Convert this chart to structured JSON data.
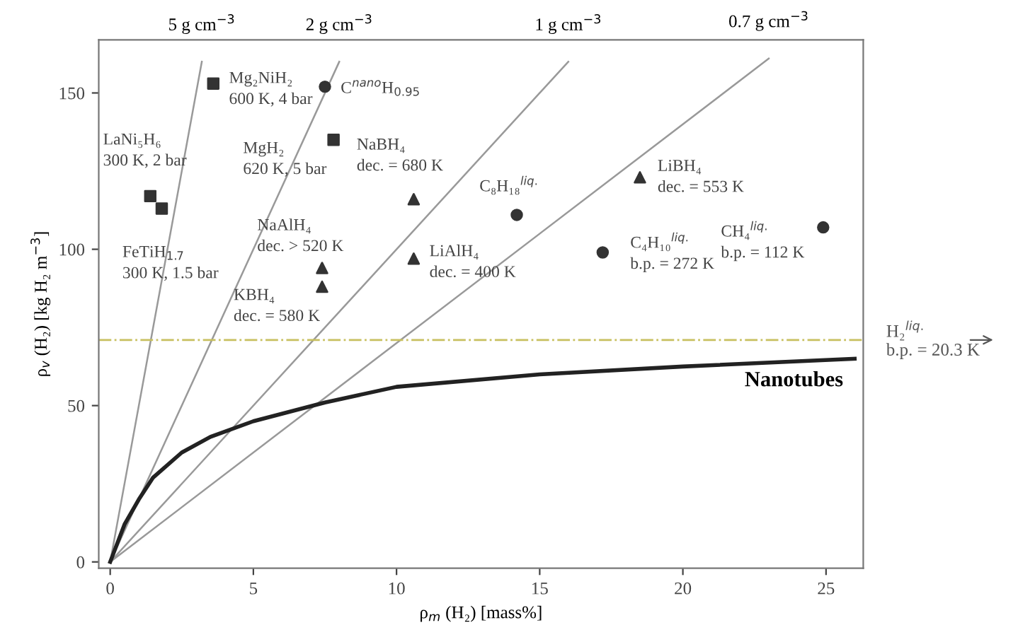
{
  "chart_data": {
    "type": "scatter",
    "xlabel": "ρ$_{m}$ (H₂) [mass%]",
    "ylabel": "ρ$_{v}$ (H₂) [kg H₂ m$^{−3}$]",
    "xlim": [
      -0.4,
      26.3
    ],
    "ylim": [
      -2,
      167
    ],
    "xticks": [
      0,
      5,
      10,
      15,
      20,
      25
    ],
    "yticks": [
      0,
      50,
      100,
      150
    ],
    "grid": false,
    "legend": false,
    "series": [
      {
        "marker": "square",
        "color": "#333333",
        "x": [
          3.6,
          7.8,
          1.4,
          1.8
        ],
        "values": [
          153,
          135,
          117,
          113
        ]
      },
      {
        "marker": "circle",
        "color": "#333333",
        "x": [
          7.5,
          14.2,
          24.9,
          17.2
        ],
        "values": [
          152,
          111,
          107,
          99
        ]
      },
      {
        "marker": "triangle",
        "color": "#333333",
        "x": [
          10.6,
          18.5,
          10.6,
          7.4,
          7.4
        ],
        "values": [
          116,
          123,
          97,
          94,
          88
        ]
      },
      {
        "type": "line",
        "name": "5 g cm$^{−3}$",
        "color": "#999999",
        "x": [
          0,
          3.2
        ],
        "values": [
          0,
          160
        ]
      },
      {
        "type": "line",
        "name": "2 g cm$^{−3}$",
        "color": "#999999",
        "x": [
          0,
          8
        ],
        "values": [
          0,
          160
        ]
      },
      {
        "type": "line",
        "name": "1 g cm$^{−3}$",
        "color": "#999999",
        "x": [
          0,
          16
        ],
        "values": [
          0,
          160
        ]
      },
      {
        "type": "line",
        "name": "0.7 g cm$^{−3}$",
        "color": "#999999",
        "x": [
          0,
          23
        ],
        "values": [
          0,
          161
        ]
      },
      {
        "type": "line",
        "name": "Nanotubes",
        "color": "#222222",
        "x": [
          0,
          0.5,
          1,
          1.5,
          2.5,
          3.5,
          5,
          7.5,
          10,
          15,
          20,
          26
        ],
        "values": [
          0,
          12,
          20,
          27,
          35,
          40,
          45,
          51,
          56,
          60,
          62.5,
          65
        ]
      }
    ],
    "ref_lines": [
      {
        "axis": "y",
        "value": 71,
        "color": "#c8c060",
        "line_style": "dashdot"
      }
    ],
    "annotations": [
      "H₂$^{liq.}$\nb.p. = 20.3 K",
      {
        "text": "Mg₂NiH₂\n600 K, 4 bar",
        "x": 3.6,
        "y": 153
      },
      {
        "text": "C$^{nano}$H$_{0.95}$",
        "x": 7.5,
        "y": 152
      },
      {
        "text": "MgH₂\n620 K, 5 bar",
        "x": 7.8,
        "y": 135
      },
      {
        "text": "LaNi₅H₆\n300 K, 2 bar",
        "x": 1.4,
        "y": 117
      },
      {
        "text": "FeTiH$_{1.7}$\n300 K, 1.5 bar",
        "x": 1.8,
        "y": 113
      },
      {
        "text": "NaBH₄\ndec. = 680 K",
        "x": 10.6,
        "y": 116
      },
      {
        "text": "C₈H₁₈$^{liq.}$",
        "x": 14.2,
        "y": 111
      },
      {
        "text": "LiBH₄\ndec. = 553 K",
        "x": 18.5,
        "y": 123
      },
      {
        "text": "CH₄$^{liq.}$\nb.p. = 112 K",
        "x": 24.9,
        "y": 107
      },
      {
        "text": "C₄H₁₀$^{liq.}$\nb.p. = 272 K",
        "x": 17.2,
        "y": 99
      },
      {
        "text": "LiAlH₄\ndec. = 400 K",
        "x": 10.6,
        "y": 97
      },
      {
        "text": "NaAlH₄\ndec. > 520 K",
        "x": 7.4,
        "y": 94
      },
      {
        "text": "KBH₄\ndec. = 580 K",
        "x": 7.4,
        "y": 88
      }
    ]
  }
}
